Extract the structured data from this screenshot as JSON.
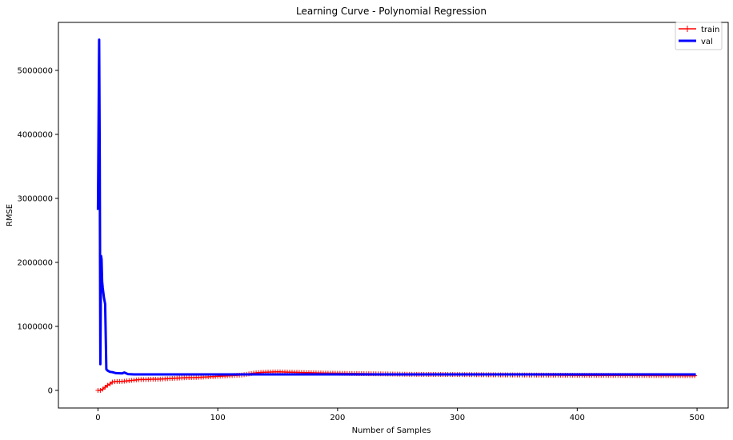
{
  "chart_data": {
    "type": "line",
    "title": "Learning Curve - Polynomial Regression",
    "xlabel": "Number of Samples",
    "ylabel": "RMSE",
    "xlim": [
      -33,
      526
    ],
    "ylim": [
      -275000,
      5750000
    ],
    "xticks": [
      0,
      100,
      200,
      300,
      400,
      500
    ],
    "xtick_labels": [
      "0",
      "100",
      "200",
      "300",
      "400",
      "500"
    ],
    "yticks": [
      0,
      1000000,
      2000000,
      3000000,
      4000000,
      5000000
    ],
    "ytick_labels": [
      "0",
      "1000000",
      "2000000",
      "3000000",
      "4000000",
      "5000000"
    ],
    "grid": false,
    "legend_position": "top-right",
    "series": [
      {
        "name": "train",
        "color": "#ff0000",
        "marker": "+",
        "line_width": 1.5,
        "x": [
          0,
          2,
          4,
          6,
          8,
          10,
          12,
          15,
          20,
          25,
          30,
          35,
          40,
          45,
          50,
          55,
          60,
          65,
          70,
          75,
          80,
          85,
          90,
          95,
          100,
          110,
          120,
          125,
          130,
          135,
          140,
          150,
          160,
          170,
          180,
          190,
          200,
          210,
          220,
          240,
          260,
          280,
          300,
          320,
          340,
          360,
          380,
          400,
          420,
          440,
          460,
          480,
          499
        ],
        "y": [
          0,
          0,
          20000,
          50000,
          80000,
          100000,
          130000,
          140000,
          140000,
          150000,
          160000,
          170000,
          170000,
          175000,
          175000,
          180000,
          185000,
          190000,
          195000,
          200000,
          200000,
          205000,
          210000,
          215000,
          220000,
          230000,
          240000,
          255000,
          270000,
          280000,
          285000,
          290000,
          285000,
          280000,
          275000,
          270000,
          268000,
          265000,
          262000,
          258000,
          252000,
          250000,
          248000,
          245000,
          242000,
          240000,
          238000,
          236000,
          235000,
          234000,
          233000,
          232000,
          230000
        ]
      },
      {
        "name": "val",
        "color": "#0000ff",
        "marker": "",
        "line_width": 3,
        "x": [
          0,
          1,
          1.5,
          2,
          2.6,
          3,
          3.5,
          4,
          5,
          6,
          7,
          8,
          10,
          12,
          15,
          20,
          22,
          25,
          30,
          40,
          50,
          75,
          100,
          150,
          200,
          250,
          300,
          350,
          400,
          450,
          499
        ],
        "y": [
          2820000,
          5480000,
          3600000,
          410000,
          2100000,
          2050000,
          1700000,
          1600000,
          1450000,
          1350000,
          330000,
          310000,
          290000,
          285000,
          270000,
          265000,
          280000,
          255000,
          250000,
          250000,
          250000,
          250000,
          250000,
          250000,
          250000,
          250000,
          250000,
          250000,
          250000,
          250000,
          250000
        ]
      }
    ]
  }
}
